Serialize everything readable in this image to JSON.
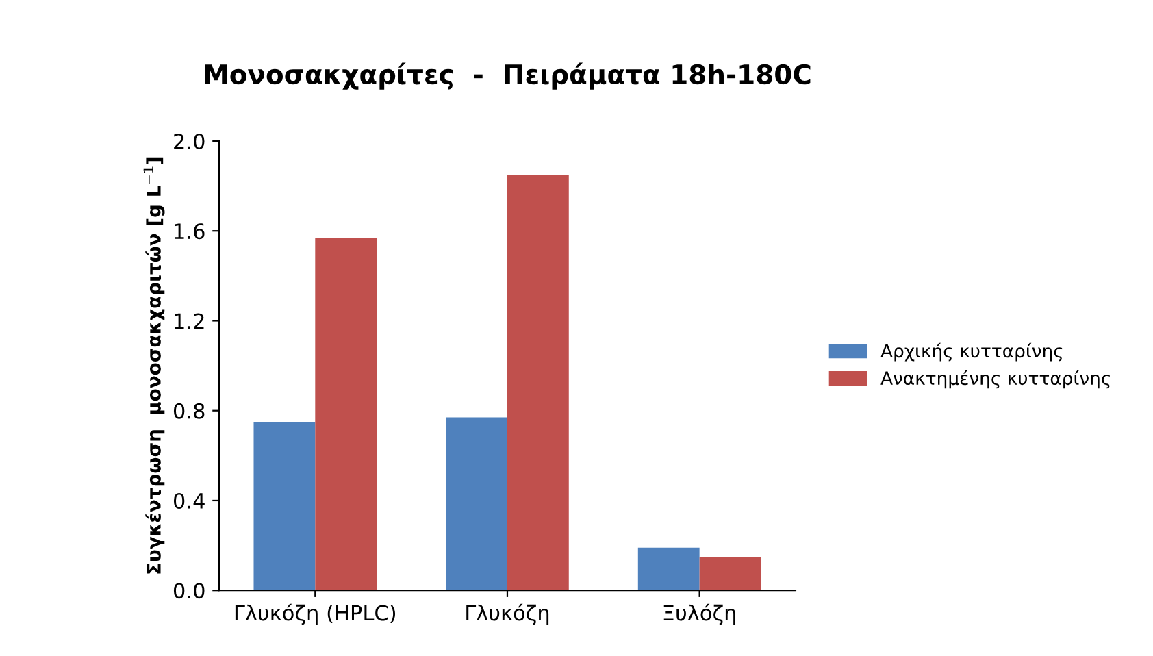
{
  "chart_data": {
    "type": "bar",
    "title": "Μονοσακχαρίτες  -  Πειράματα 18h-180C",
    "ylabel": "Συγκέντρωση  μονοσακχαριτών [g L$^{−1}$]",
    "categories": [
      "Γλυκόζη (HPLC)",
      "Γλυκόζη",
      "Ξυλόζη"
    ],
    "series": [
      {
        "name": "Αρχικής κυτταρίνης",
        "color": "#4f81bd",
        "values": [
          0.75,
          0.77,
          0.19
        ]
      },
      {
        "name": "Ανακτημένης κυτταρίνης",
        "color": "#c0504d",
        "values": [
          1.57,
          1.85,
          0.15
        ]
      }
    ],
    "ylim": [
      0,
      2.0
    ],
    "yticks": [
      {
        "value": 0,
        "label": "0.0"
      },
      {
        "value": 0.4,
        "label": "0.4"
      },
      {
        "value": 0.8,
        "label": "0.8"
      },
      {
        "value": 1.2,
        "label": "1.2"
      },
      {
        "value": 1.6,
        "label": "1.6"
      },
      {
        "value": 2.0,
        "label": "2.0"
      }
    ],
    "grid": false,
    "legend": "right"
  }
}
